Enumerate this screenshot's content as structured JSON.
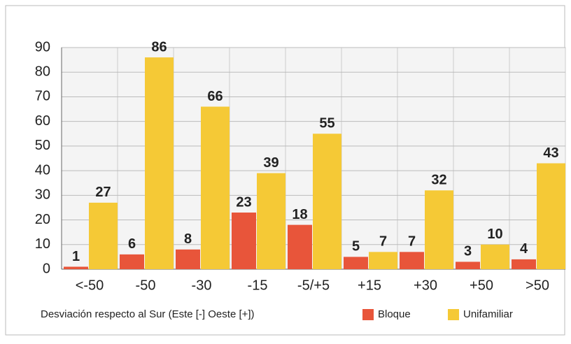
{
  "chart_data": {
    "type": "bar",
    "x_label": "Desviación respecto al Sur (Este [-] Oeste [+])",
    "categories": [
      "<-50",
      "-50",
      "-30",
      "-15",
      "-5/+5",
      "+15",
      "+30",
      "+50",
      ">50"
    ],
    "series": [
      {
        "name": "Bloque",
        "color": "#e8553a",
        "values": [
          1,
          6,
          8,
          23,
          18,
          5,
          7,
          3,
          4
        ]
      },
      {
        "name": "Unifamiliar",
        "color": "#f5c936",
        "values": [
          27,
          86,
          66,
          39,
          55,
          7,
          32,
          10,
          43
        ]
      }
    ],
    "ylim": [
      0,
      90
    ],
    "yticks": [
      0,
      10,
      20,
      30,
      40,
      50,
      60,
      70,
      80,
      90
    ],
    "grid": true
  }
}
